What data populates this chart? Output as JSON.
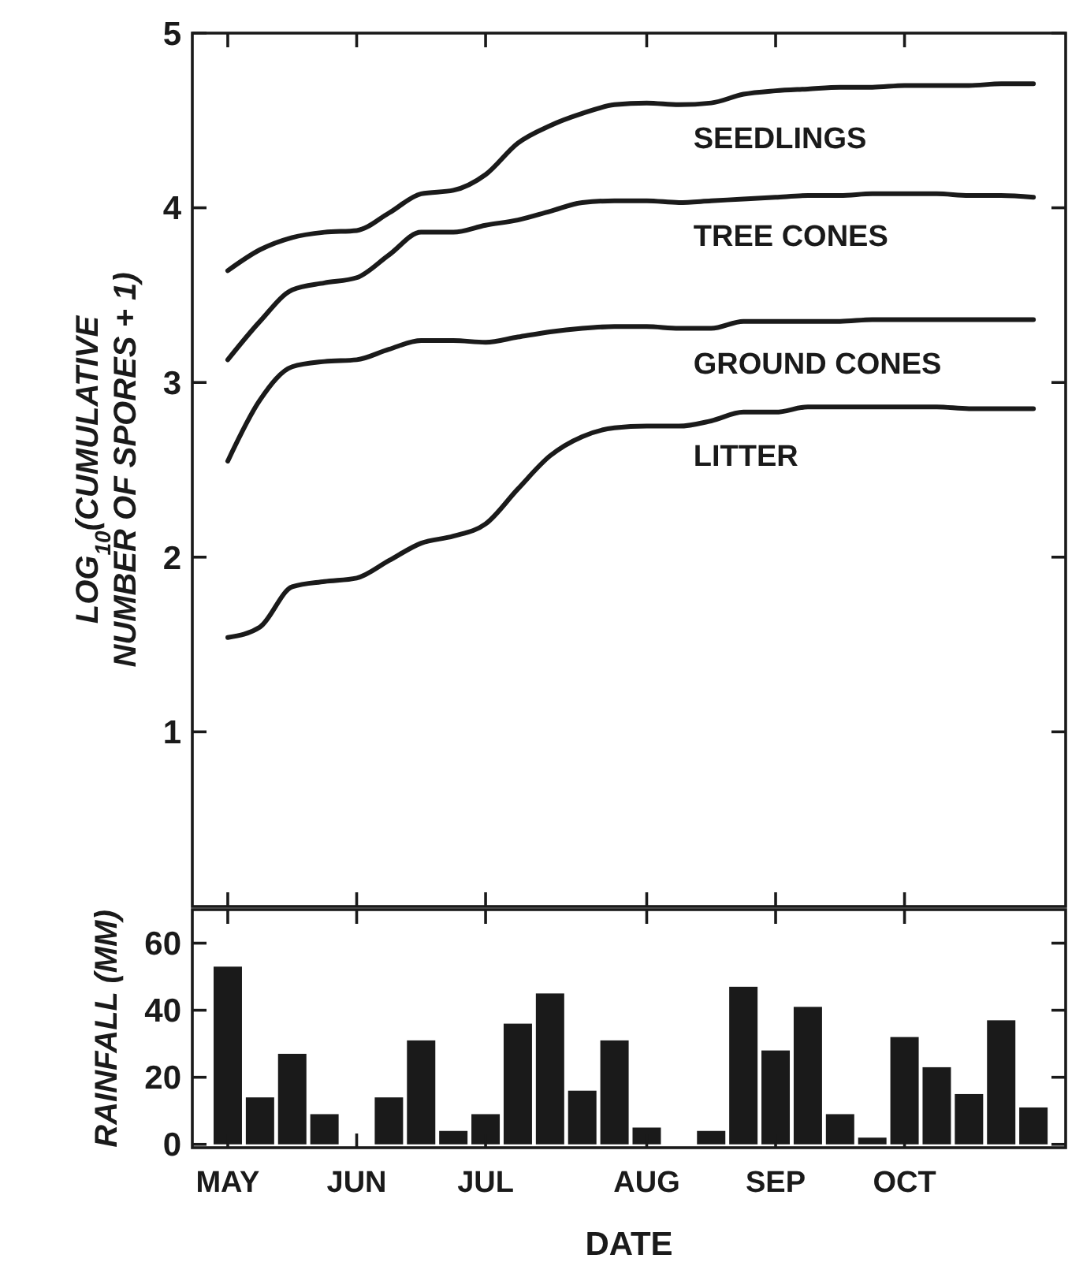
{
  "chart_data": [
    {
      "type": "line",
      "ylabel": "LOG$_{10}$(CUMULATIVE NUMBER OF SPORES + 1)",
      "categories": [
        null,
        null,
        null,
        null,
        null,
        null,
        null,
        null,
        null,
        null,
        null,
        null,
        null,
        null,
        null,
        null,
        null,
        null,
        null,
        null,
        null,
        null,
        null,
        null,
        null,
        null
      ],
      "ylim": [
        0,
        5
      ],
      "yticks": [
        1,
        2,
        3,
        4,
        5
      ],
      "marker": "none",
      "line_style": "solid",
      "series": [
        {
          "color": "#1a1a1a",
          "values": [
            3.64,
            3.76,
            3.83,
            3.86,
            3.87,
            3.97,
            4.08,
            4.1,
            4.19,
            4.37,
            4.47,
            4.54,
            4.59,
            4.6,
            4.59,
            4.6,
            4.65,
            4.67,
            4.68,
            4.69,
            4.69,
            4.7,
            4.7,
            4.7,
            4.71,
            4.71
          ]
        },
        {
          "color": "#1a1a1a",
          "values": [
            3.13,
            3.35,
            3.53,
            3.57,
            3.6,
            3.73,
            3.86,
            3.86,
            3.9,
            3.93,
            3.98,
            4.03,
            4.04,
            4.04,
            4.03,
            4.04,
            4.05,
            4.06,
            4.07,
            4.07,
            4.08,
            4.08,
            4.08,
            4.07,
            4.07,
            4.06
          ]
        },
        {
          "color": "#1a1a1a",
          "values": [
            2.55,
            2.9,
            3.09,
            3.12,
            3.13,
            3.19,
            3.24,
            3.24,
            3.23,
            3.26,
            3.29,
            3.31,
            3.32,
            3.32,
            3.31,
            3.31,
            3.35,
            3.35,
            3.35,
            3.35,
            3.36,
            3.36,
            3.36,
            3.36,
            3.36,
            3.36
          ]
        },
        {
          "color": "#1a1a1a",
          "values": [
            1.54,
            1.6,
            1.83,
            1.86,
            1.88,
            1.98,
            2.08,
            2.12,
            2.19,
            2.39,
            2.58,
            2.69,
            2.74,
            2.75,
            2.75,
            2.78,
            2.83,
            2.83,
            2.86,
            2.86,
            2.86,
            2.86,
            2.86,
            2.85,
            2.85,
            2.85
          ]
        }
      ],
      "annotations": [
        "SEEDLINGS",
        "TREE CONES",
        "GROUND CONES",
        "LITTER"
      ]
    },
    {
      "type": "bar",
      "xlabel": "DATE",
      "ylabel": "RAINFALL (MM)",
      "categories": [
        "MAY",
        null,
        null,
        null,
        "JUN",
        null,
        null,
        null,
        "JUL",
        null,
        null,
        null,
        null,
        "AUG",
        null,
        null,
        null,
        "SEP",
        null,
        null,
        null,
        "OCT",
        null,
        null,
        null,
        null
      ],
      "ylim": [
        -1,
        70
      ],
      "yticks": [
        0,
        20,
        40,
        60
      ],
      "values": [
        53,
        14,
        27,
        9,
        0,
        14,
        31,
        4,
        9,
        36,
        45,
        16,
        31,
        5,
        0,
        4,
        47,
        28,
        41,
        9,
        2,
        32,
        23,
        15,
        37,
        11
      ],
      "color": "#1a1a1a"
    }
  ]
}
